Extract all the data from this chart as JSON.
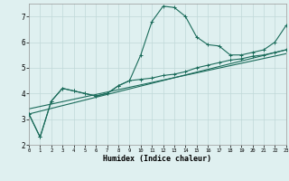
{
  "xlabel": "Humidex (Indice chaleur)",
  "ylabel": "",
  "background_color": "#dff0f0",
  "grid_color": "#c0d8d8",
  "line_color": "#1a6b5a",
  "xlim": [
    0,
    23
  ],
  "ylim": [
    2,
    7.5
  ],
  "yticks": [
    2,
    3,
    4,
    5,
    6,
    7
  ],
  "xticks": [
    0,
    1,
    2,
    3,
    4,
    5,
    6,
    7,
    8,
    9,
    10,
    11,
    12,
    13,
    14,
    15,
    16,
    17,
    18,
    19,
    20,
    21,
    22,
    23
  ],
  "series1_x": [
    0,
    1,
    2,
    3,
    4,
    5,
    6,
    7,
    8,
    9,
    10,
    11,
    12,
    13,
    14,
    15,
    16,
    17,
    18,
    19,
    20,
    21,
    22,
    23
  ],
  "series1_y": [
    3.2,
    2.3,
    3.7,
    4.2,
    4.1,
    4.0,
    3.9,
    4.0,
    4.3,
    4.5,
    5.5,
    6.8,
    7.4,
    7.35,
    7.0,
    6.2,
    5.9,
    5.85,
    5.5,
    5.5,
    5.6,
    5.7,
    6.0,
    6.65
  ],
  "series2_x": [
    0,
    1,
    2,
    3,
    4,
    5,
    6,
    7,
    8,
    9,
    10,
    11,
    12,
    13,
    14,
    15,
    16,
    17,
    18,
    19,
    20,
    21,
    22,
    23
  ],
  "series2_y": [
    3.2,
    2.3,
    3.7,
    4.2,
    4.1,
    4.0,
    3.9,
    4.0,
    4.3,
    4.5,
    4.55,
    4.6,
    4.7,
    4.75,
    4.85,
    5.0,
    5.1,
    5.2,
    5.3,
    5.35,
    5.45,
    5.5,
    5.6,
    5.7
  ],
  "series3_x": [
    0,
    23
  ],
  "series3_y": [
    3.2,
    5.7
  ],
  "series4_x": [
    0,
    23
  ],
  "series4_y": [
    3.4,
    5.55
  ]
}
